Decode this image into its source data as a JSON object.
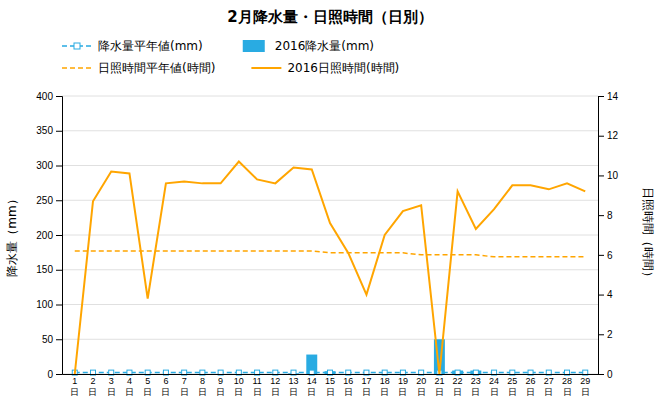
{
  "chart_data": {
    "type": "bar",
    "title": "2月降水量・日照時間（日別）",
    "categories": [
      "1\n日",
      "2\n日",
      "3\n日",
      "4\n日",
      "5\n日",
      "6\n日",
      "7\n日",
      "8\n日",
      "9\n日",
      "10\n日",
      "11\n日",
      "12\n日",
      "13\n日",
      "14\n日",
      "15\n日",
      "16\n日",
      "17\n日",
      "18\n日",
      "19\n日",
      "20\n日",
      "21\n日",
      "22\n日",
      "23\n日",
      "24\n日",
      "25\n日",
      "26\n日",
      "27\n日",
      "28\n日",
      "29\n日"
    ],
    "series": [
      {
        "name": "降水量平年値(mm)",
        "type": "line",
        "color": "#29ABE2",
        "line_style": "dashed",
        "marker": "square",
        "values": [
          2,
          2,
          2,
          2,
          2,
          2,
          2,
          2,
          2,
          2,
          2,
          2,
          2,
          2,
          2,
          2,
          2,
          2,
          2,
          2,
          2,
          2,
          2,
          2,
          2,
          2,
          2,
          2,
          2
        ]
      },
      {
        "name": "2016降水量(mm)",
        "type": "bar",
        "color": "#29ABE2",
        "values": [
          0,
          0,
          0,
          0,
          0,
          0,
          0,
          0,
          0,
          0,
          0,
          0,
          1,
          28,
          4,
          0,
          0,
          0,
          0,
          0,
          50,
          5,
          5,
          0,
          0,
          0,
          0,
          0,
          0
        ]
      },
      {
        "name": "日照時間平年値(時間)",
        "type": "line",
        "color": "#FFA500",
        "line_style": "dashed",
        "axis": "y2",
        "values": [
          6.2,
          6.2,
          6.2,
          6.2,
          6.2,
          6.2,
          6.2,
          6.2,
          6.2,
          6.2,
          6.2,
          6.2,
          6.2,
          6.2,
          6.1,
          6.1,
          6.1,
          6.1,
          6.1,
          6.0,
          6.0,
          6.0,
          6.0,
          5.9,
          5.9,
          5.9,
          5.9,
          5.9,
          5.9
        ]
      },
      {
        "name": "2016日照時間(時間)",
        "type": "line",
        "color": "#FFA500",
        "line_style": "solid",
        "axis": "y2",
        "values": [
          0,
          8.7,
          10.2,
          10.1,
          3.8,
          9.6,
          9.7,
          9.6,
          9.6,
          10.7,
          9.8,
          9.6,
          10.4,
          10.3,
          7.6,
          6.1,
          4.0,
          7.0,
          8.2,
          8.5,
          0,
          9.2,
          7.3,
          8.3,
          9.5,
          9.5,
          9.3,
          9.6,
          9.2
        ]
      }
    ],
    "ylabel": "降水量（mm）",
    "y2label": "日照時間（時間）",
    "ylim": [
      0,
      400
    ],
    "yticks": [
      0,
      50,
      100,
      150,
      200,
      250,
      300,
      350,
      400
    ],
    "y2lim": [
      0,
      14
    ],
    "y2ticks": [
      0,
      2,
      4,
      6,
      8,
      10,
      12,
      14
    ],
    "grid": true,
    "legend": "top"
  }
}
